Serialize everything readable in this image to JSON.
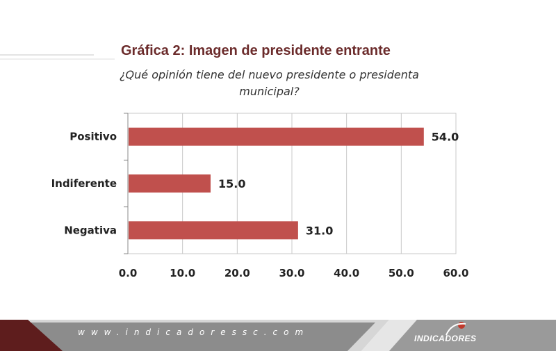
{
  "header": {
    "title": "Gráfica 2: Imagen de presidente entrante",
    "subtitle": "¿Qué opinión tiene del nuevo presidente o presidenta municipal?"
  },
  "chart_data": {
    "type": "bar",
    "orientation": "horizontal",
    "categories": [
      "Positivo",
      "Indiferente",
      "Negativa"
    ],
    "values": [
      54.0,
      15.0,
      31.0
    ],
    "data_labels": [
      "54.0",
      "15.0",
      "31.0"
    ],
    "xlim": [
      0,
      60
    ],
    "x_ticks": [
      "0.0",
      "10.0",
      "20.0",
      "30.0",
      "40.0",
      "50.0",
      "60.0"
    ],
    "grid": true,
    "bar_color": "#c0504d",
    "title": "Gráfica 2: Imagen de presidente entrante"
  },
  "footer": {
    "url": "www.indicadoressc.com",
    "brand": "INDICADORES",
    "colors": {
      "dark": "#5e1d1d",
      "gray": "#8c8c8c",
      "light": "#d6d6d6"
    }
  }
}
